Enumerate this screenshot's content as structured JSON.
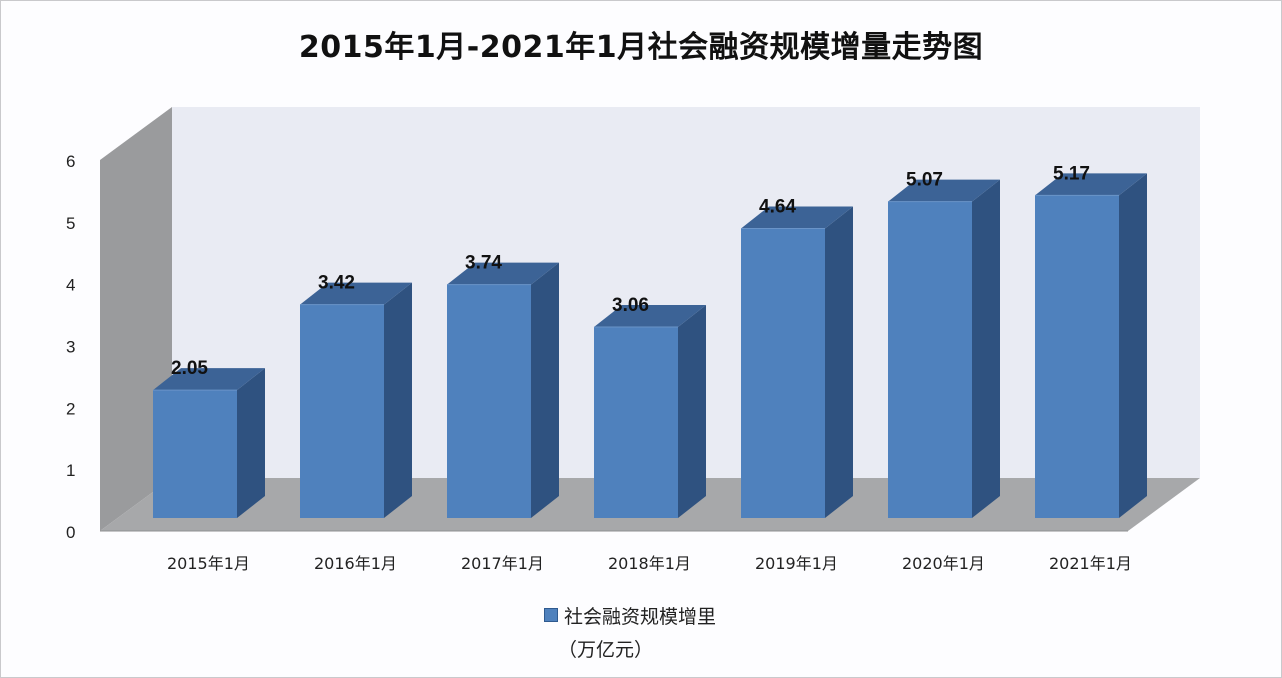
{
  "chart_data": {
    "type": "bar",
    "style": "3d-column",
    "title": "2015年1月-2021年1月社会融资规模增量走势图",
    "categories": [
      "2015年1月",
      "2016年1月",
      "2017年1月",
      "2018年1月",
      "2019年1月",
      "2020年1月",
      "2021年1月"
    ],
    "series": [
      {
        "name": "社会融资规模增里（万亿元）",
        "values": [
          2.05,
          3.42,
          3.74,
          3.06,
          4.64,
          5.07,
          5.17
        ]
      }
    ],
    "value_labels": [
      "2.05",
      "3.42",
      "3.74",
      "3.06",
      "4.64",
      "5.07",
      "5.17"
    ],
    "xlabel": "",
    "ylabel": "",
    "ylim": [
      0,
      6
    ],
    "yticks": [
      "0",
      "1",
      "2",
      "3",
      "4",
      "5",
      "6"
    ],
    "grid": false,
    "legend_position": "bottom"
  },
  "legend": {
    "label": "社会融资规模增里",
    "unit": "（万亿元）"
  },
  "colors": {
    "bar_front": "#4f81bd",
    "bar_top": "#3c6396",
    "bar_side": "#2f5280",
    "back_wall": "#e9ebf3",
    "side_wall": "#9a9b9d",
    "floor": "#a7a8aa"
  }
}
